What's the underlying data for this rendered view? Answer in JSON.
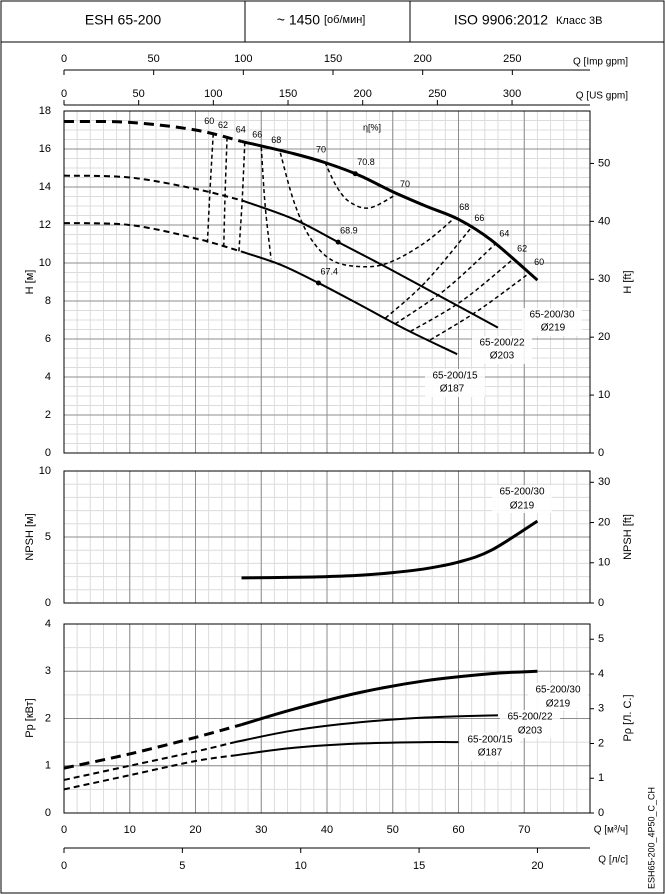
{
  "header": {
    "model": "ESH 65-200",
    "speed": "~ 1450",
    "speed_unit": "[об/мин]",
    "standard": "ISO 9906:2012",
    "grade": "Класс 3B"
  },
  "side_code": "ESH65-200_4P50_C_CH",
  "x_axes": {
    "m3h": {
      "label": "Q [м³/ч]",
      "xlim": [
        0,
        80
      ],
      "xticks": [
        0,
        10,
        20,
        30,
        40,
        50,
        60,
        70
      ],
      "minor": 2
    },
    "ls": {
      "label": "Q [л/с]",
      "xlim": [
        0,
        22.22
      ],
      "xticks": [
        0,
        5,
        10,
        15,
        20
      ]
    },
    "imp": {
      "label": "Q [Imp gpm]",
      "xlim": [
        0,
        293.3
      ],
      "xticks": [
        0,
        50,
        100,
        150,
        200,
        250
      ]
    },
    "us": {
      "label": "Q [US gpm]",
      "xlim": [
        0,
        352.2
      ],
      "xticks": [
        0,
        50,
        100,
        150,
        200,
        250,
        300
      ]
    }
  },
  "chart_data": [
    {
      "type": "line",
      "ylabel": "H [м]",
      "y2label": "H [ft]",
      "ylim": [
        0,
        18
      ],
      "yticks": [
        0,
        2,
        4,
        6,
        8,
        10,
        12,
        14,
        16,
        18
      ],
      "yminor": 0.5,
      "y2lim": [
        0,
        59.055
      ],
      "y2ticks": [
        0,
        10,
        20,
        30,
        40,
        50
      ],
      "grid": true,
      "series": [
        {
          "name": "65-200/30",
          "diameter": "Ø219",
          "color": "#000000",
          "width": 3,
          "segments": [
            {
              "style": "dashed",
              "x": [
                0,
                10,
                20,
                27
              ],
              "values": [
                17.45,
                17.4,
                17.0,
                16.4
              ]
            },
            {
              "style": "solid",
              "x": [
                27,
                35,
                40,
                45,
                50,
                55,
                60,
                65,
                72
              ],
              "values": [
                16.4,
                15.75,
                15.25,
                14.6,
                13.75,
                13.0,
                12.3,
                11.2,
                9.1
              ]
            }
          ]
        },
        {
          "name": "65-200/22",
          "diameter": "Ø203",
          "color": "#000000",
          "width": 2,
          "segments": [
            {
              "style": "dashed",
              "x": [
                0,
                10,
                20,
                27
              ],
              "values": [
                14.6,
                14.5,
                13.9,
                13.3
              ]
            },
            {
              "style": "solid",
              "x": [
                27,
                35,
                41.7,
                50,
                58,
                66
              ],
              "values": [
                13.3,
                12.3,
                11.1,
                9.6,
                8.1,
                6.6
              ]
            }
          ]
        },
        {
          "name": "65-200/15",
          "diameter": "Ø187",
          "color": "#000000",
          "width": 2,
          "segments": [
            {
              "style": "dashed",
              "x": [
                0,
                10,
                20,
                27
              ],
              "values": [
                12.1,
                12.0,
                11.3,
                10.6
              ]
            },
            {
              "style": "solid",
              "x": [
                27,
                33,
                38.7,
                45,
                52,
                59.8
              ],
              "values": [
                10.6,
                9.9,
                8.95,
                7.8,
                6.5,
                5.2
              ]
            }
          ]
        }
      ],
      "efficiency_label": "η[%]",
      "efficiency_lines": [
        {
          "label": "60",
          "x": [
            22.7,
            22.2,
            21.8
          ],
          "values": [
            16.8,
            13.8,
            11.0
          ]
        },
        {
          "label": "62",
          "x": [
            24.8,
            24.5,
            24.3
          ],
          "values": [
            16.6,
            13.6,
            10.9
          ]
        },
        {
          "label": "64",
          "x": [
            27.5,
            27.1,
            26.6
          ],
          "values": [
            16.35,
            13.3,
            10.6
          ]
        },
        {
          "label": "66",
          "x": [
            30.0,
            30.6,
            31.5
          ],
          "values": [
            16.1,
            13.0,
            10.2
          ]
        },
        {
          "label": "68",
          "x": [
            32.9,
            35,
            37.5,
            41,
            46,
            50,
            55,
            59.5
          ],
          "values": [
            15.8,
            13.2,
            11.3,
            10.1,
            9.8,
            10.1,
            11.1,
            12.4
          ]
        },
        {
          "label": "70",
          "x": [
            39.7,
            41.5,
            43.5,
            46.5,
            50.5
          ],
          "values": [
            15.3,
            14.0,
            13.2,
            12.9,
            13.6
          ]
        },
        {
          "label": "66",
          "x": [
            48.9,
            55,
            61.8
          ],
          "values": [
            7.1,
            9.0,
            11.8
          ]
        },
        {
          "label": "64",
          "x": [
            50.4,
            58,
            65.6
          ],
          "values": [
            6.8,
            8.6,
            11.0
          ]
        },
        {
          "label": "62",
          "x": [
            52.7,
            60.5,
            68.3
          ],
          "values": [
            6.4,
            8.0,
            10.2
          ]
        },
        {
          "label": "60",
          "x": [
            55.7,
            63,
            70.9
          ],
          "values": [
            5.95,
            7.5,
            9.5
          ]
        }
      ],
      "points": [
        {
          "label": "70.8",
          "x": 44.3,
          "y": 14.7
        },
        {
          "label": "68.9",
          "x": 41.7,
          "y": 11.1
        },
        {
          "label": "67.4",
          "x": 38.7,
          "y": 8.95
        }
      ]
    },
    {
      "type": "line",
      "ylabel": "NPSH [м]",
      "y2label": "NPSH [ft]",
      "ylim": [
        0,
        10
      ],
      "yticks": [
        0,
        5,
        10
      ],
      "yminor": 1,
      "y2lim": [
        0,
        32.808
      ],
      "y2ticks": [
        0,
        10,
        20,
        30
      ],
      "grid": true,
      "series": [
        {
          "name": "65-200/30",
          "diameter": "Ø219",
          "color": "#000000",
          "width": 3,
          "segments": [
            {
              "style": "solid",
              "x": [
                27,
                35,
                40,
                45,
                50,
                55,
                60,
                65,
                72
              ],
              "values": [
                1.9,
                1.95,
                2.0,
                2.1,
                2.3,
                2.6,
                3.1,
                4.0,
                6.2
              ]
            }
          ]
        }
      ]
    },
    {
      "type": "line",
      "ylabel": "Pp [кВт]",
      "y2label": "Pρ [Л. С.]",
      "ylim": [
        0,
        4
      ],
      "yticks": [
        0,
        1,
        2,
        3,
        4
      ],
      "yminor": 0.5,
      "y2lim": [
        0,
        5.438
      ],
      "y2ticks": [
        0,
        1,
        2,
        3,
        4,
        5
      ],
      "grid": true,
      "series": [
        {
          "name": "65-200/30",
          "diameter": "Ø219",
          "color": "#000000",
          "width": 3,
          "segments": [
            {
              "style": "dashed",
              "x": [
                0,
                10,
                20,
                27
              ],
              "values": [
                0.95,
                1.25,
                1.6,
                1.87
              ]
            },
            {
              "style": "solid",
              "x": [
                27,
                35,
                45,
                55,
                65,
                72
              ],
              "values": [
                1.87,
                2.2,
                2.55,
                2.8,
                2.95,
                3.0
              ]
            }
          ]
        },
        {
          "name": "65-200/22",
          "diameter": "Ø203",
          "color": "#000000",
          "width": 2,
          "segments": [
            {
              "style": "dashed",
              "x": [
                0,
                10,
                20,
                26
              ],
              "values": [
                0.7,
                1.0,
                1.3,
                1.5
              ]
            },
            {
              "style": "solid",
              "x": [
                26,
                35,
                45,
                55,
                66
              ],
              "values": [
                1.5,
                1.75,
                1.92,
                2.02,
                2.07
              ]
            }
          ]
        },
        {
          "name": "65-200/15",
          "diameter": "Ø187",
          "color": "#000000",
          "width": 2,
          "segments": [
            {
              "style": "dashed",
              "x": [
                0,
                10,
                20,
                26
              ],
              "values": [
                0.5,
                0.8,
                1.1,
                1.22
              ]
            },
            {
              "style": "solid",
              "x": [
                26,
                35,
                45,
                55,
                60
              ],
              "values": [
                1.22,
                1.38,
                1.47,
                1.5,
                1.5
              ]
            }
          ]
        }
      ]
    }
  ]
}
